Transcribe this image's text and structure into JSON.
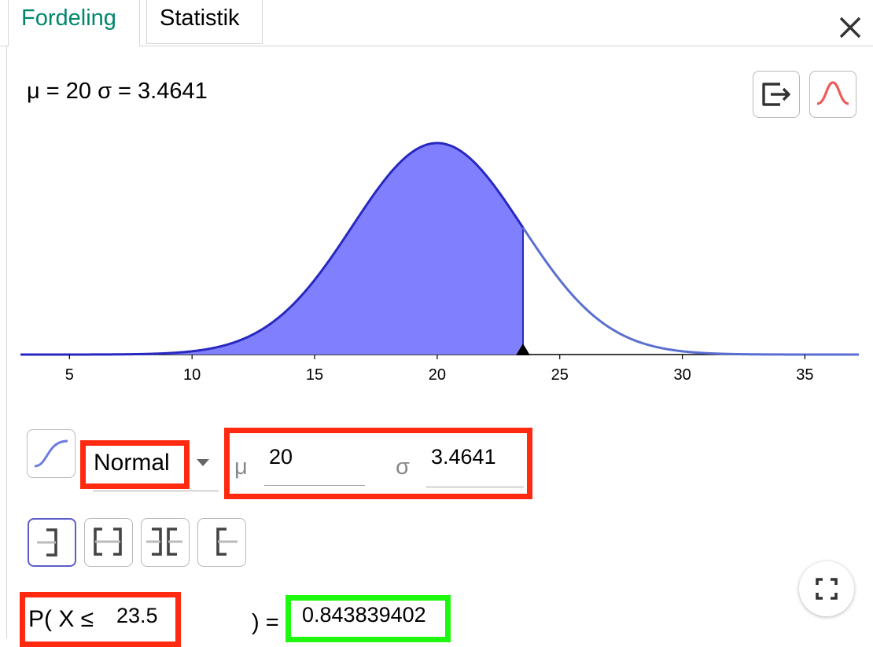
{
  "tabs": [
    {
      "label": "Fordeling",
      "active": true
    },
    {
      "label": "Statistik",
      "active": false
    }
  ],
  "params_text": "μ = 20 σ = 3.4641",
  "distribution": {
    "name": "Normal",
    "mu_label": "μ",
    "mu_value": "20",
    "sigma_label": "σ",
    "sigma_value": "3.4641"
  },
  "probability": {
    "prefix": "P( X ≤",
    "bound": "23.5",
    "suffix": ") =",
    "result": "0.843839402"
  },
  "chart_data": {
    "type": "area",
    "function": "normal_pdf",
    "mu": 20,
    "sigma": 3.4641,
    "shaded_upper": 23.5,
    "xlim": [
      3,
      37.2
    ],
    "x_ticks": [
      "5",
      "10",
      "15",
      "20",
      "25",
      "30",
      "35"
    ],
    "fill_color": "#8080ff",
    "curve_color": "#2828c0"
  },
  "colors": {
    "accent": "#00866b",
    "highlight_red": "#ff2a0f",
    "highlight_green": "#1ef80e",
    "active_border": "#5e5cc8"
  },
  "icons": [
    "close-icon",
    "export-icon",
    "normal-overlay-icon",
    "cumulative-icon",
    "dropdown-arrow-icon",
    "left-sided-icon",
    "interval-icon",
    "two-tailed-icon",
    "right-sided-icon",
    "fullscreen-icon"
  ]
}
